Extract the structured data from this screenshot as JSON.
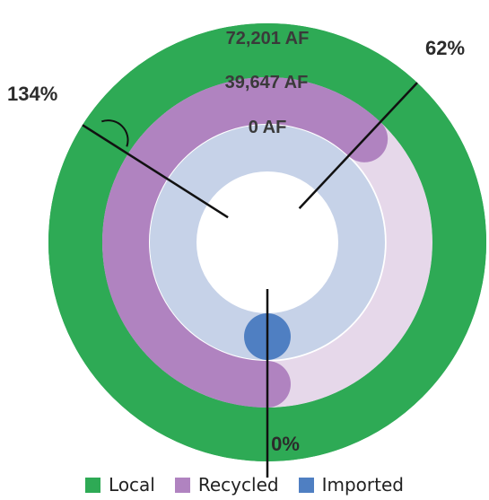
{
  "chart_data": {
    "type": "radial-bar",
    "title": "",
    "series": [
      {
        "name": "Local",
        "value_label": "72,201 AF",
        "percent_label": "134%",
        "percent": 134,
        "color": "#2eaa55",
        "track_color": "#2eaa55"
      },
      {
        "name": "Recycled",
        "value_label": "39,647 AF",
        "percent_label": "62%",
        "percent": 62,
        "color": "#b083c0",
        "track_color": "#e6d8ea"
      },
      {
        "name": "Imported",
        "value_label": "0 AF",
        "percent_label": "0%",
        "percent": 0,
        "color": "#4f7fc2",
        "track_color": "#c6d2e8"
      }
    ],
    "legend": {
      "placement": "bottom",
      "items": [
        "Local",
        "Recycled",
        "Imported"
      ]
    }
  }
}
